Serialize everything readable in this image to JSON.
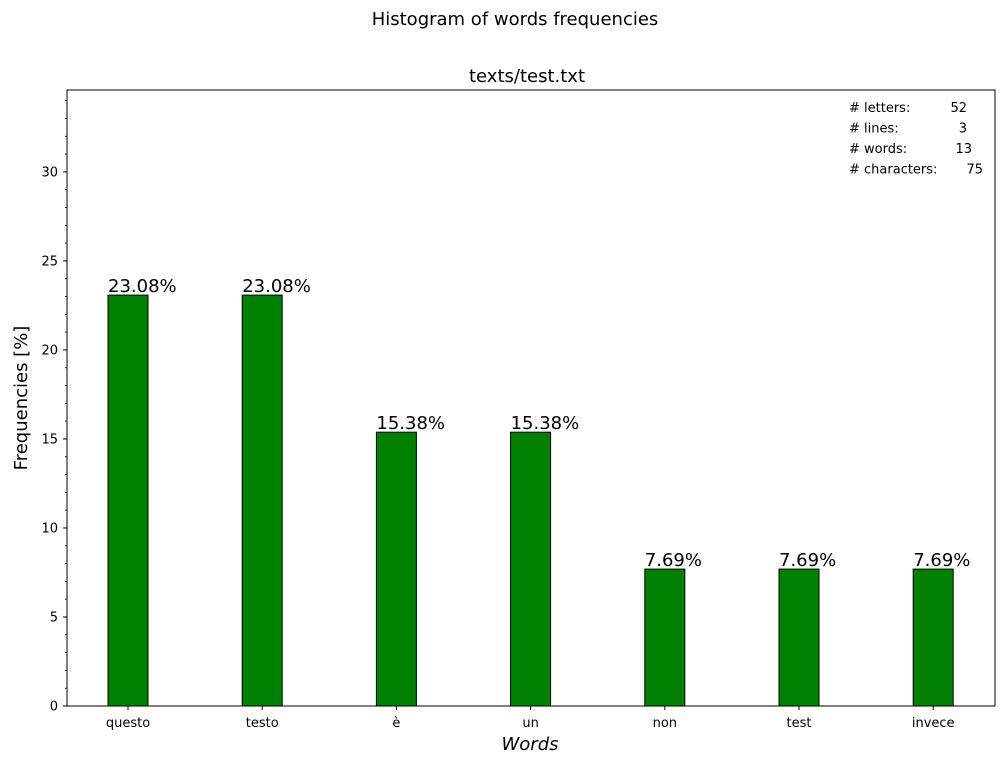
{
  "chart_data": {
    "type": "bar",
    "suptitle": "Histogram of words frequencies",
    "title": "texts/test.txt",
    "xlabel": "Words",
    "ylabel": "Frequencies [%]",
    "ylim": [
      0,
      34.6
    ],
    "yticks": [
      0,
      5,
      10,
      15,
      20,
      25,
      30
    ],
    "categories": [
      "questo",
      "testo",
      "è",
      "un",
      "non",
      "test",
      "invece"
    ],
    "values": [
      23.08,
      23.08,
      15.38,
      15.38,
      7.69,
      7.69,
      7.69
    ],
    "data_labels": [
      "23.08%",
      "23.08%",
      "15.38%",
      "15.38%",
      "7.69%",
      "7.69%",
      "7.69%"
    ],
    "bar_color": "#008000",
    "bar_edge_color": "#000000",
    "grid": false,
    "stats_placement": "top-right",
    "stats": [
      {
        "label": "# letters:",
        "value": "52"
      },
      {
        "label": "# lines:",
        "value": "3"
      },
      {
        "label": "# words:",
        "value": "13"
      },
      {
        "label": "# characters:",
        "value": "75"
      }
    ]
  }
}
